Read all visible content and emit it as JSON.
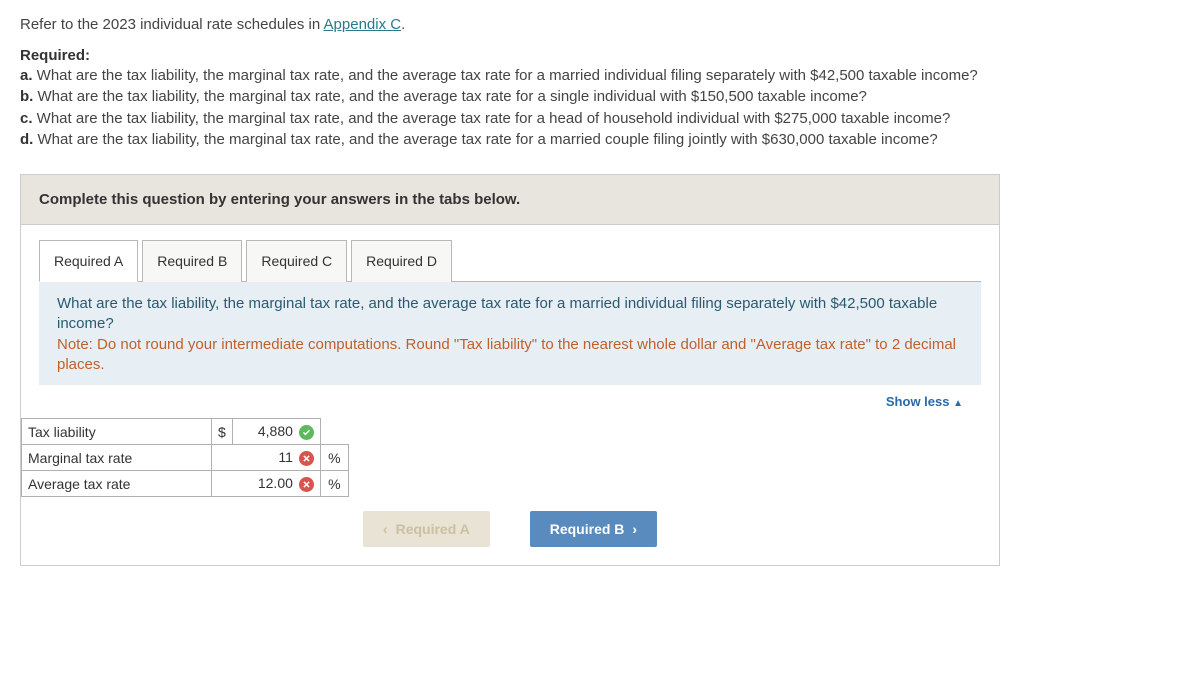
{
  "intro": {
    "prefix": "Refer to the 2023 individual rate schedules in ",
    "link_text": "Appendix C",
    "suffix": "."
  },
  "required": {
    "heading": "Required:",
    "items": [
      {
        "lead": "a.",
        "text": " What are the tax liability, the marginal tax rate, and the average tax rate for a married individual filing separately with $42,500 taxable income?"
      },
      {
        "lead": "b.",
        "text": " What are the tax liability, the marginal tax rate, and the average tax rate for a single individual with $150,500 taxable income?"
      },
      {
        "lead": "c.",
        "text": " What are the tax liability, the marginal tax rate, and the average tax rate for a head of household individual with $275,000 taxable income?"
      },
      {
        "lead": "d.",
        "text": " What are the tax liability, the marginal tax rate, and the average tax rate for a married couple filing jointly with $630,000 taxable income?"
      }
    ]
  },
  "question_box": {
    "header": "Complete this question by entering your answers in the tabs below.",
    "tabs": [
      "Required A",
      "Required B",
      "Required C",
      "Required D"
    ],
    "active_tab_index": 0,
    "body_question": "What are the tax liability, the marginal tax rate, and the average tax rate for a married individual filing separately with $42,500 taxable income?",
    "body_note": "Note: Do not round your intermediate computations. Round \"Tax liability\" to the nearest whole dollar and \"Average tax rate\" to 2 decimal places.",
    "show_less": "Show less",
    "answers": {
      "rows": [
        {
          "label": "Tax liability",
          "currency": "$",
          "value": "4,880",
          "status": "ok",
          "suffix": ""
        },
        {
          "label": "Marginal tax rate",
          "currency": "",
          "value": "11",
          "status": "bad",
          "suffix": "%"
        },
        {
          "label": "Average tax rate",
          "currency": "",
          "value": "12.00",
          "status": "bad",
          "suffix": "%"
        }
      ]
    },
    "nav": {
      "prev": "Required A",
      "next": "Required B"
    }
  },
  "colors": {
    "ok": "#5eb85e",
    "bad": "#d9534f",
    "tab_body_bg": "#e7eff5",
    "note_color": "#c0602a"
  }
}
